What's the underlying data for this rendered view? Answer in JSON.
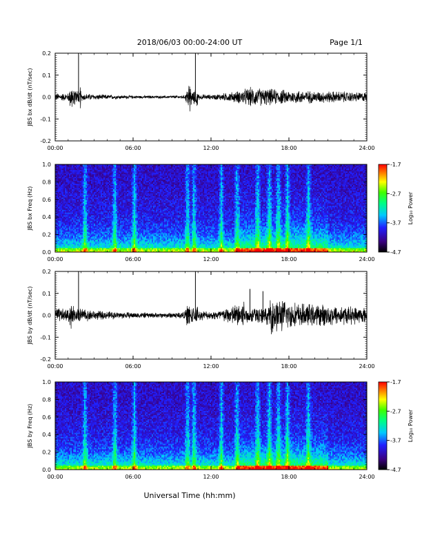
{
  "header": {
    "title": "2018/06/03  00:00-24:00 UT",
    "page": "Page 1/1"
  },
  "xlabel": "Universal Time (hh:mm)",
  "colorbar": {
    "ticks": [
      "-1.7",
      "-2.7",
      "-3.7",
      "-4.7"
    ],
    "label": "Log₁₀ Power",
    "range": [
      -4.7,
      -1.7
    ]
  },
  "chart_data": [
    {
      "type": "line",
      "ylabel": "JBS bx dB/dt (nT/sec)",
      "xlim": [
        0,
        24
      ],
      "ylim": [
        -0.2,
        0.2
      ],
      "x_tick_labels": [
        "00:00",
        "06:00",
        "12:00",
        "18:00",
        "24:00"
      ],
      "y_tick_labels": [
        "0.2",
        "0.1",
        "0.0",
        "-0.1",
        "-0.2"
      ],
      "series": [
        {
          "x": [
            0,
            1,
            1.8,
            2,
            3,
            4,
            5,
            6,
            7,
            8,
            9,
            10,
            10.8,
            11,
            12,
            13,
            14,
            15,
            16,
            17,
            18,
            19,
            20,
            21,
            22,
            23,
            24
          ],
          "envelope": [
            0.02,
            0.02,
            0.2,
            0.02,
            0.015,
            0.012,
            0.01,
            0.008,
            0.007,
            0.007,
            0.008,
            0.01,
            0.2,
            0.015,
            0.012,
            0.02,
            0.03,
            0.05,
            0.045,
            0.04,
            0.035,
            0.035,
            0.03,
            0.03,
            0.03,
            0.025,
            0.025
          ]
        }
      ]
    },
    {
      "type": "heatmap",
      "ylabel": "JBS bx Freq (Hz)",
      "xlim": [
        0,
        24
      ],
      "ylim": [
        0.0,
        1.0
      ],
      "x_tick_labels": [
        "00:00",
        "06:00",
        "12:00",
        "18:00",
        "24:00"
      ],
      "y_tick_labels": [
        "1.0",
        "0.8",
        "0.6",
        "0.4",
        "0.2",
        "0.0"
      ],
      "bright_columns_hours": [
        2.3,
        4.6,
        6.1,
        10.2,
        10.7,
        12.8,
        14.0,
        15.6,
        16.5,
        17.2,
        17.9,
        19.5
      ]
    },
    {
      "type": "line",
      "ylabel": "JBS by dB/dt (nT/sec)",
      "xlim": [
        0,
        24
      ],
      "ylim": [
        -0.2,
        0.2
      ],
      "x_tick_labels": [
        "00:00",
        "06:00",
        "12:00",
        "18:00",
        "24:00"
      ],
      "y_tick_labels": [
        "0.2",
        "0.1",
        "0.0",
        "-0.1",
        "-0.2"
      ],
      "series": [
        {
          "x": [
            0,
            1,
            1.8,
            2,
            3,
            4,
            5,
            6,
            7,
            8,
            9,
            10,
            10.8,
            11,
            12,
            13,
            14,
            15,
            16,
            17,
            18,
            19,
            20,
            21,
            22,
            23,
            24
          ],
          "envelope": [
            0.04,
            0.03,
            0.2,
            0.035,
            0.025,
            0.02,
            0.018,
            0.015,
            0.015,
            0.012,
            0.015,
            0.02,
            0.2,
            0.025,
            0.02,
            0.035,
            0.06,
            0.12,
            0.11,
            0.09,
            0.07,
            0.06,
            0.055,
            0.055,
            0.05,
            0.045,
            0.04
          ]
        }
      ]
    },
    {
      "type": "heatmap",
      "ylabel": "JBS by Freq (Hz)",
      "xlim": [
        0,
        24
      ],
      "ylim": [
        0.0,
        1.0
      ],
      "x_tick_labels": [
        "00:00",
        "06:00",
        "12:00",
        "18:00",
        "24:00"
      ],
      "y_tick_labels": [
        "1.0",
        "0.8",
        "0.6",
        "0.4",
        "0.2",
        "0.0"
      ],
      "bright_columns_hours": [
        2.3,
        4.6,
        6.1,
        10.2,
        10.7,
        12.8,
        14.0,
        15.6,
        16.5,
        17.2,
        17.9,
        19.5
      ]
    }
  ]
}
